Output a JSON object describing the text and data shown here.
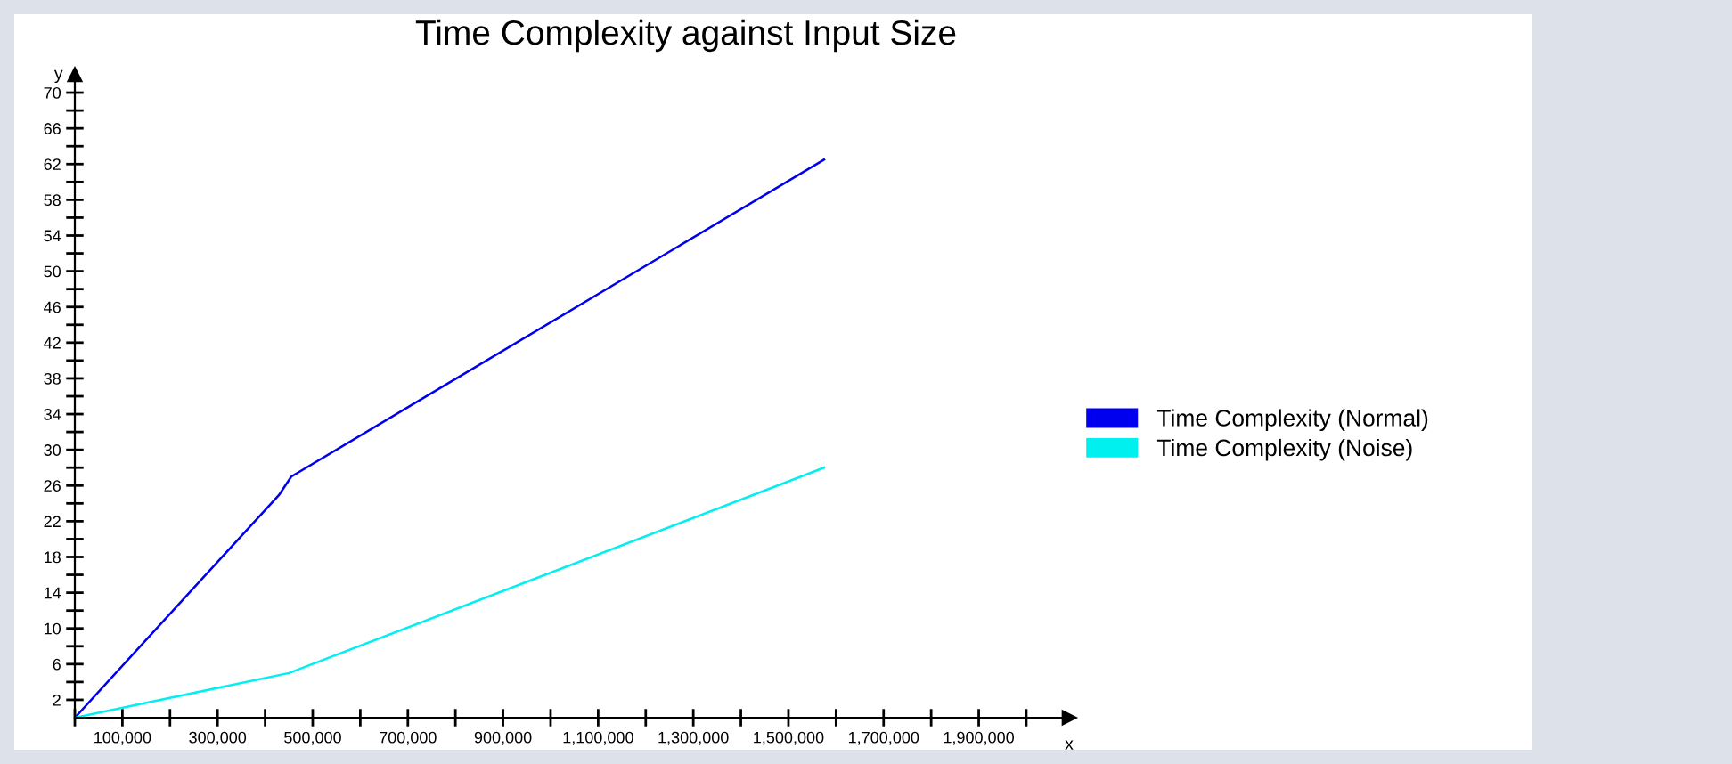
{
  "chart_data": {
    "type": "line",
    "title": "Time Complexity against Input Size",
    "xlabel": "x",
    "ylabel": "y",
    "series": [
      {
        "name": "Time Complexity (Normal)",
        "color": "#0000ee",
        "x": [
          0,
          430000,
          455000,
          1575000
        ],
        "values": [
          0,
          25,
          27,
          62.5
        ]
      },
      {
        "name": "Time Complexity (Noise)",
        "color": "#00f0f0",
        "x": [
          0,
          450000,
          1575000
        ],
        "values": [
          0,
          5,
          28
        ]
      }
    ],
    "xlim": [
      0,
      2090000
    ],
    "ylim": [
      0,
      72
    ],
    "xticks": [
      {
        "value": 0,
        "label": null
      },
      {
        "value": 100000,
        "label": "100,000"
      },
      {
        "value": 200000,
        "label": null
      },
      {
        "value": 300000,
        "label": "300,000"
      },
      {
        "value": 400000,
        "label": null
      },
      {
        "value": 500000,
        "label": "500,000"
      },
      {
        "value": 600000,
        "label": null
      },
      {
        "value": 700000,
        "label": "700,000"
      },
      {
        "value": 800000,
        "label": null
      },
      {
        "value": 900000,
        "label": "900,000"
      },
      {
        "value": 1000000,
        "label": null
      },
      {
        "value": 1100000,
        "label": "1,100,000"
      },
      {
        "value": 1200000,
        "label": null
      },
      {
        "value": 1300000,
        "label": "1,300,000"
      },
      {
        "value": 1400000,
        "label": null
      },
      {
        "value": 1500000,
        "label": "1,500,000"
      },
      {
        "value": 1600000,
        "label": null
      },
      {
        "value": 1700000,
        "label": "1,700,000"
      },
      {
        "value": 1800000,
        "label": null
      },
      {
        "value": 1900000,
        "label": "1,900,000"
      },
      {
        "value": 2000000,
        "label": null
      }
    ],
    "yticks": [
      2,
      {
        "value": 4,
        "label": null
      },
      6,
      {
        "value": 8,
        "label": null
      },
      10,
      {
        "value": 12,
        "label": null
      },
      14,
      {
        "value": 16,
        "label": null
      },
      18,
      {
        "value": 20,
        "label": null
      },
      22,
      {
        "value": 24,
        "label": null
      },
      26,
      {
        "value": 28,
        "label": null
      },
      30,
      {
        "value": 32,
        "label": null
      },
      34,
      {
        "value": 36,
        "label": null
      },
      38,
      {
        "value": 40,
        "label": null
      },
      42,
      {
        "value": 44,
        "label": null
      },
      46,
      {
        "value": 48,
        "label": null
      },
      50,
      {
        "value": 52,
        "label": null
      },
      54,
      {
        "value": 56,
        "label": null
      },
      58,
      {
        "value": 60,
        "label": null
      },
      62,
      {
        "value": 64,
        "label": null
      },
      66,
      {
        "value": 68,
        "label": null
      },
      70
    ],
    "grid": false,
    "legend": "right",
    "marker": "none",
    "line_style": "solid"
  }
}
